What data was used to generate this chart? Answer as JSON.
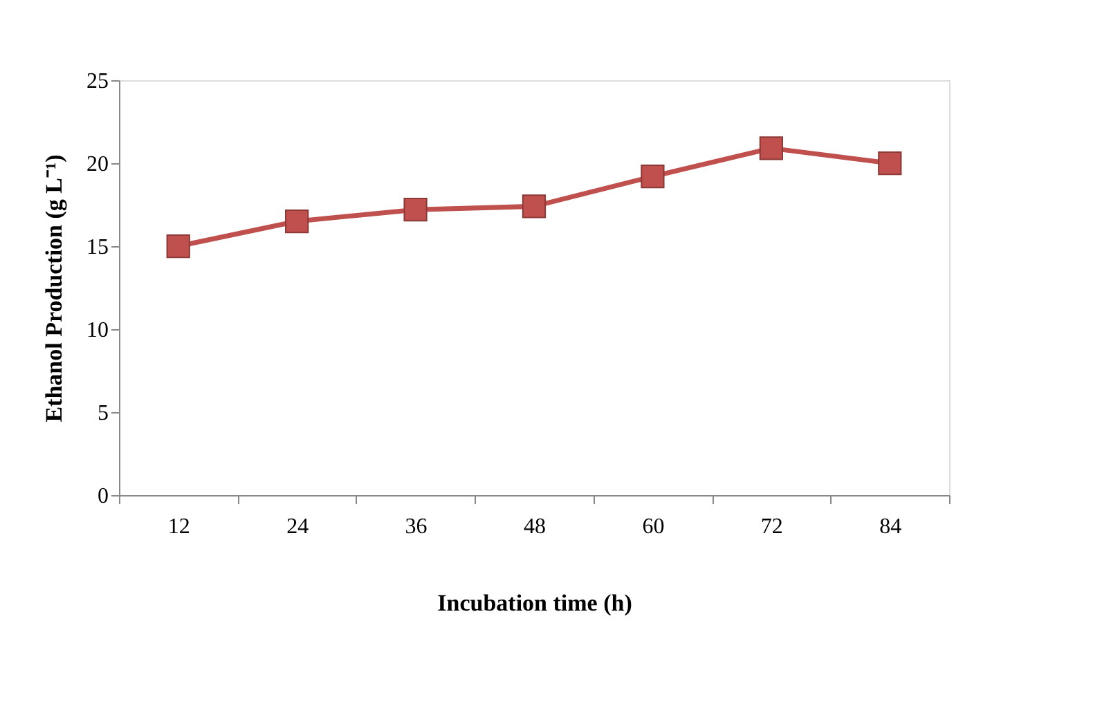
{
  "chart_data": {
    "type": "line",
    "xlabel": "Incubation time (h)",
    "ylabel": "Ethanol Production (g L⁻¹)",
    "categories": [
      "12",
      "24",
      "36",
      "48",
      "60",
      "72",
      "84"
    ],
    "series": [
      {
        "color": "#c0504d",
        "values": [
          15,
          16.5,
          17.2,
          17.4,
          19.2,
          20.9,
          20
        ]
      }
    ],
    "ylim": [
      0,
      25
    ],
    "yticks": [
      0,
      5,
      10,
      15,
      20,
      25
    ],
    "grid": false,
    "marker": "square",
    "line_style": "solid"
  }
}
